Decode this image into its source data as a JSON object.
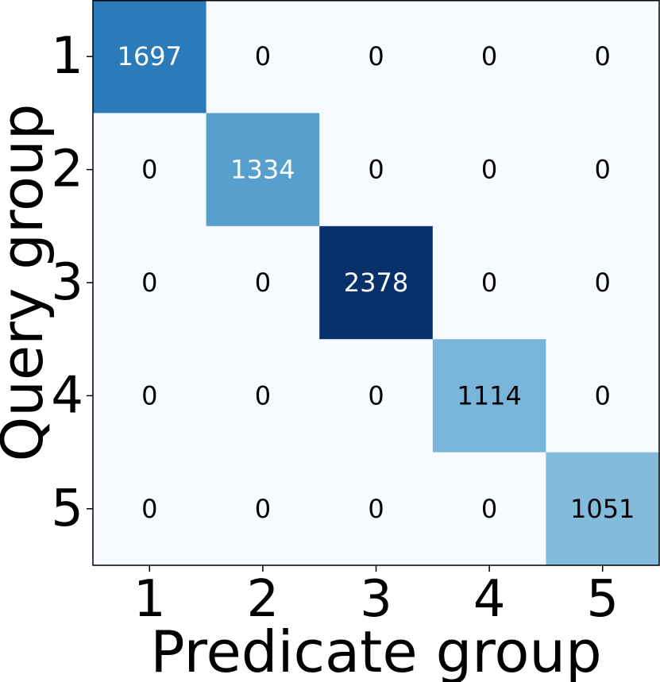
{
  "chart_data": {
    "type": "heatmap",
    "title": "",
    "xlabel": "Predicate group",
    "ylabel": "Query group",
    "x_categories": [
      "1",
      "2",
      "3",
      "4",
      "5"
    ],
    "y_categories": [
      "1",
      "2",
      "3",
      "4",
      "5"
    ],
    "values": [
      [
        1697,
        0,
        0,
        0,
        0
      ],
      [
        0,
        1334,
        0,
        0,
        0
      ],
      [
        0,
        0,
        2378,
        0,
        0
      ],
      [
        0,
        0,
        0,
        1114,
        0
      ],
      [
        0,
        0,
        0,
        0,
        1051
      ]
    ],
    "value_range": [
      0,
      2378
    ],
    "colormap": "Blues",
    "colors": {
      "low": "#f7fbff",
      "high": "#08306b",
      "text_dark": "#000000",
      "text_light": "#ffffff"
    },
    "grid": false,
    "legend": "none"
  }
}
